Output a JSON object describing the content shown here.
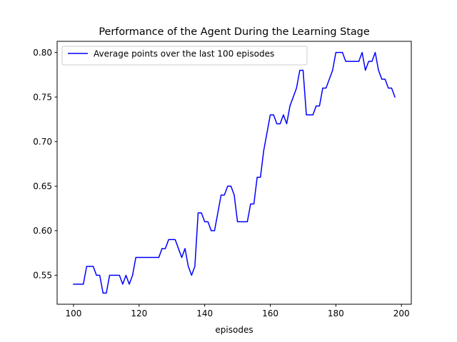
{
  "chart_data": {
    "type": "line",
    "title": "Performance of the Agent During the Learning Stage",
    "xlabel": "episodes",
    "ylabel": "",
    "xlim": [
      95,
      203
    ],
    "ylim": [
      0.5175,
      0.8125
    ],
    "xticks": [
      100,
      120,
      140,
      160,
      180,
      200
    ],
    "xtick_labels": [
      "100",
      "120",
      "140",
      "160",
      "180",
      "200"
    ],
    "yticks": [
      0.55,
      0.6,
      0.65,
      0.7,
      0.75,
      0.8
    ],
    "ytick_labels": [
      "0.55",
      "0.60",
      "0.65",
      "0.70",
      "0.75",
      "0.80"
    ],
    "grid": false,
    "legend": {
      "placement": "top-left"
    },
    "colors": {
      "series": "#0000ff",
      "axes": "#000000",
      "background": "#ffffff"
    },
    "series": [
      {
        "name": "Average points over the last 100 episodes",
        "x": [
          100,
          101,
          102,
          103,
          104,
          105,
          106,
          107,
          108,
          109,
          110,
          111,
          112,
          113,
          114,
          115,
          116,
          117,
          118,
          119,
          120,
          121,
          122,
          123,
          124,
          125,
          126,
          127,
          128,
          129,
          130,
          131,
          132,
          133,
          134,
          135,
          136,
          137,
          138,
          139,
          140,
          141,
          142,
          143,
          144,
          145,
          146,
          147,
          148,
          149,
          150,
          151,
          152,
          153,
          154,
          155,
          156,
          157,
          158,
          159,
          160,
          161,
          162,
          163,
          164,
          165,
          166,
          167,
          168,
          169,
          170,
          171,
          172,
          173,
          174,
          175,
          176,
          177,
          178,
          179,
          180,
          181,
          182,
          183,
          184,
          185,
          186,
          187,
          188,
          189,
          190,
          191,
          192,
          193,
          194,
          195,
          196,
          197,
          198
        ],
        "values": [
          0.54,
          0.54,
          0.54,
          0.54,
          0.56,
          0.56,
          0.56,
          0.55,
          0.55,
          0.53,
          0.53,
          0.55,
          0.55,
          0.55,
          0.55,
          0.54,
          0.55,
          0.54,
          0.55,
          0.57,
          0.57,
          0.57,
          0.57,
          0.57,
          0.57,
          0.57,
          0.57,
          0.58,
          0.58,
          0.59,
          0.59,
          0.59,
          0.58,
          0.57,
          0.58,
          0.56,
          0.55,
          0.56,
          0.62,
          0.62,
          0.61,
          0.61,
          0.6,
          0.6,
          0.62,
          0.64,
          0.64,
          0.65,
          0.65,
          0.64,
          0.61,
          0.61,
          0.61,
          0.61,
          0.63,
          0.63,
          0.66,
          0.66,
          0.69,
          0.71,
          0.73,
          0.73,
          0.72,
          0.72,
          0.73,
          0.72,
          0.74,
          0.75,
          0.76,
          0.78,
          0.78,
          0.73,
          0.73,
          0.73,
          0.74,
          0.74,
          0.76,
          0.76,
          0.77,
          0.78,
          0.8,
          0.8,
          0.8,
          0.79,
          0.79,
          0.79,
          0.79,
          0.79,
          0.8,
          0.78,
          0.79,
          0.79,
          0.8,
          0.78,
          0.77,
          0.77,
          0.76,
          0.76,
          0.75
        ]
      }
    ]
  }
}
